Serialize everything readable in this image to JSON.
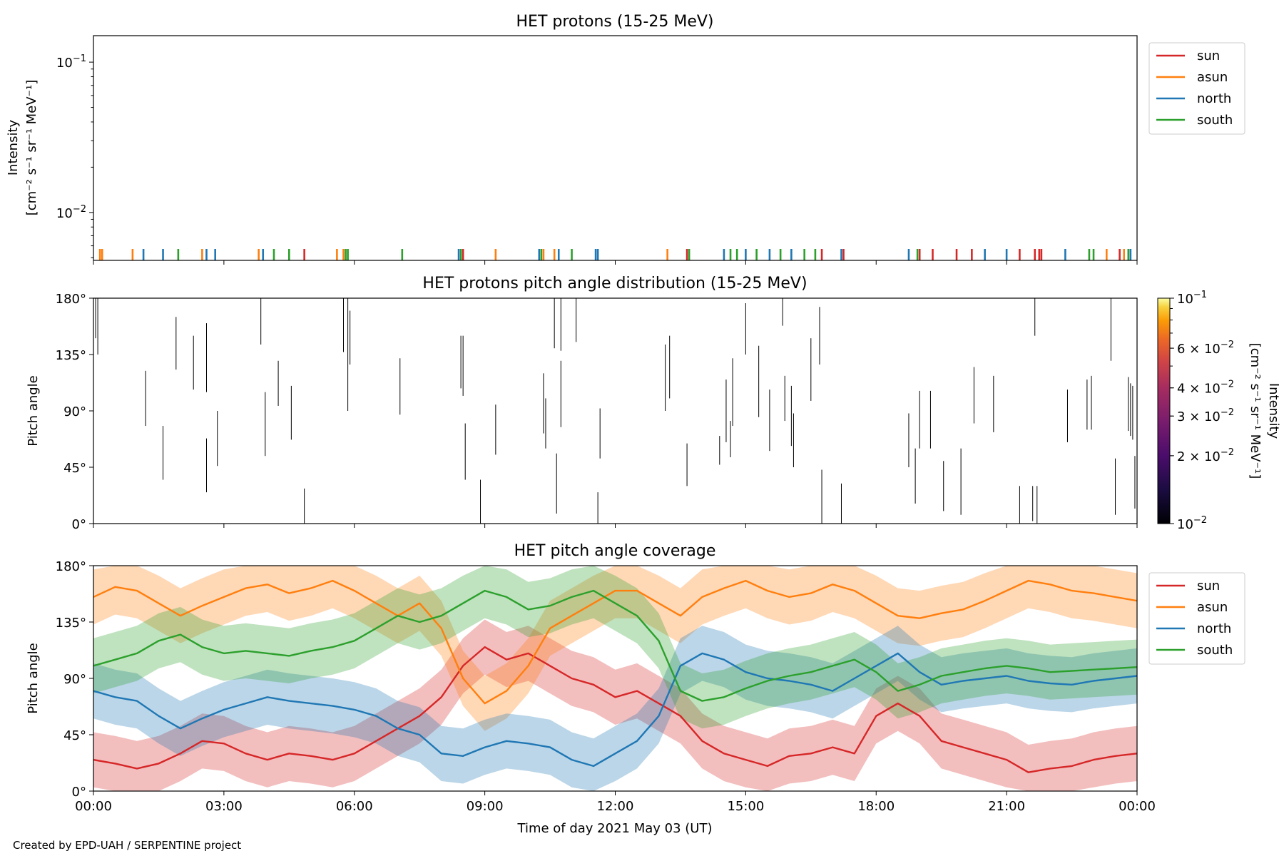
{
  "figure": {
    "credit": "Created by EPD-UAH / SERPENTINE project",
    "xlabel": "Time of day 2021 May 03 (UT)",
    "xticks": [
      "00:00",
      "03:00",
      "06:00",
      "09:00",
      "12:00",
      "15:00",
      "18:00",
      "21:00",
      "00:00"
    ]
  },
  "colors": {
    "sun": "#d62728",
    "asun": "#ff7f0e",
    "north": "#1f77b4",
    "south": "#2ca02c",
    "pad": "#000000"
  },
  "chart_data": [
    {
      "id": "intensity",
      "type": "line",
      "title": "HET protons (15-25 MeV)",
      "ylabel_line1": "Intensity",
      "ylabel_line2": "[cm⁻² s⁻¹ sr⁻¹ MeV⁻¹]",
      "yscale": "log",
      "ylim": [
        0.0048,
        0.15
      ],
      "yticks": [
        {
          "v": 0.01,
          "base": "10",
          "exp": "−2"
        },
        {
          "v": 0.1,
          "base": "10",
          "exp": "−1"
        }
      ],
      "xlim_hours": [
        0,
        24
      ],
      "legend": [
        "sun",
        "asun",
        "north",
        "south"
      ],
      "legend_position": "outside-right-top",
      "spikes": {
        "sun": [
          4.85,
          8.5,
          13.65,
          16.75,
          17.25,
          19.0,
          19.3,
          19.85,
          20.2,
          21.3,
          21.65,
          21.75,
          21.8,
          23.6
        ],
        "asun": [
          0.15,
          0.2,
          0.9,
          2.5,
          3.8,
          5.6,
          5.75,
          9.25,
          10.35,
          10.6,
          13.2,
          23.3,
          23.7
        ],
        "north": [
          1.15,
          1.6,
          2.6,
          2.8,
          3.9,
          8.4,
          10.25,
          10.7,
          11.55,
          11.6,
          14.5,
          15.0,
          15.55,
          16.05,
          17.2,
          18.75,
          20.5,
          21.0,
          22.35,
          23.85
        ],
        "south": [
          1.95,
          4.15,
          4.5,
          5.8,
          5.85,
          7.1,
          8.45,
          10.3,
          11.0,
          13.7,
          14.65,
          14.8,
          15.25,
          15.8,
          16.35,
          16.6,
          18.95,
          22.9,
          23.0,
          23.8
        ]
      }
    },
    {
      "id": "pad",
      "type": "heatmap",
      "title": "HET protons pitch angle distribution (15-25 MeV)",
      "ylabel": "Pitch angle",
      "ylim": [
        0,
        180
      ],
      "yticks": [
        "0°",
        "45°",
        "90°",
        "135°",
        "180°"
      ],
      "colorbar": {
        "label_line1": "Intensity",
        "label_line2": "[cm⁻² s⁻¹ sr⁻¹ MeV⁻¹]",
        "scale": "log",
        "range": [
          0.01,
          0.1
        ],
        "ticks": [
          {
            "v": 0.01,
            "mant": "",
            "base": "10",
            "exp": "−2"
          },
          {
            "v": 0.02,
            "mant": "2 × ",
            "base": "10",
            "exp": "−2"
          },
          {
            "v": 0.03,
            "mant": "3 × ",
            "base": "10",
            "exp": "−2"
          },
          {
            "v": 0.04,
            "mant": "4 × ",
            "base": "10",
            "exp": "−2"
          },
          {
            "v": 0.06,
            "mant": "6 × ",
            "base": "10",
            "exp": "−2"
          },
          {
            "v": 0.1,
            "mant": "",
            "base": "10",
            "exp": "−1"
          }
        ]
      },
      "segments": [
        [
          0.05,
          180,
          148
        ],
        [
          0.1,
          180,
          135
        ],
        [
          1.2,
          122,
          78
        ],
        [
          1.6,
          78,
          35
        ],
        [
          1.9,
          165,
          123
        ],
        [
          2.3,
          150,
          107
        ],
        [
          2.6,
          160,
          105
        ],
        [
          2.6,
          68,
          25
        ],
        [
          2.85,
          90,
          46
        ],
        [
          3.85,
          180,
          143
        ],
        [
          3.95,
          105,
          54
        ],
        [
          4.25,
          130,
          94
        ],
        [
          4.55,
          110,
          67
        ],
        [
          4.85,
          28,
          0
        ],
        [
          5.75,
          180,
          137
        ],
        [
          5.85,
          180,
          90
        ],
        [
          5.9,
          170,
          127
        ],
        [
          7.05,
          132,
          87
        ],
        [
          8.45,
          150,
          108
        ],
        [
          8.5,
          150,
          102
        ],
        [
          8.55,
          80,
          35
        ],
        [
          8.9,
          35,
          0
        ],
        [
          9.25,
          95,
          55
        ],
        [
          10.35,
          120,
          72
        ],
        [
          10.4,
          100,
          60
        ],
        [
          10.6,
          180,
          140
        ],
        [
          10.65,
          56,
          8
        ],
        [
          10.75,
          180,
          138
        ],
        [
          10.75,
          130,
          77
        ],
        [
          11.1,
          180,
          145
        ],
        [
          11.6,
          25,
          0
        ],
        [
          11.65,
          92,
          52
        ],
        [
          13.15,
          143,
          90
        ],
        [
          13.25,
          150,
          100
        ],
        [
          13.65,
          64,
          30
        ],
        [
          14.4,
          70,
          47
        ],
        [
          14.55,
          115,
          65
        ],
        [
          14.65,
          82,
          53
        ],
        [
          14.7,
          132,
          78
        ],
        [
          15.0,
          176,
          135
        ],
        [
          15.3,
          142,
          85
        ],
        [
          15.55,
          107,
          58
        ],
        [
          15.85,
          180,
          158
        ],
        [
          15.9,
          118,
          82
        ],
        [
          16.05,
          110,
          62
        ],
        [
          16.1,
          88,
          45
        ],
        [
          16.5,
          148,
          98
        ],
        [
          16.7,
          173,
          127
        ],
        [
          16.75,
          43,
          0
        ],
        [
          17.2,
          32,
          0
        ],
        [
          18.75,
          88,
          45
        ],
        [
          18.9,
          60,
          16
        ],
        [
          19.0,
          106,
          60
        ],
        [
          19.25,
          106,
          60
        ],
        [
          19.55,
          50,
          10
        ],
        [
          19.95,
          60,
          7
        ],
        [
          20.25,
          125,
          80
        ],
        [
          20.7,
          118,
          73
        ],
        [
          21.3,
          30,
          0
        ],
        [
          21.6,
          30,
          2
        ],
        [
          21.65,
          180,
          150
        ],
        [
          21.7,
          30,
          0
        ],
        [
          22.4,
          107,
          65
        ],
        [
          22.85,
          115,
          75
        ],
        [
          22.95,
          118,
          75
        ],
        [
          23.4,
          180,
          130
        ],
        [
          23.5,
          52,
          7
        ],
        [
          23.8,
          117,
          74
        ],
        [
          23.85,
          112,
          70
        ],
        [
          23.9,
          110,
          67
        ],
        [
          23.95,
          54,
          12
        ]
      ]
    },
    {
      "id": "coverage",
      "type": "area",
      "title": "HET pitch angle coverage",
      "ylabel": "Pitch angle",
      "ylim": [
        0,
        180
      ],
      "yticks": [
        "0°",
        "45°",
        "90°",
        "135°",
        "180°"
      ],
      "band_halfwidth_deg": 22,
      "legend": [
        "sun",
        "asun",
        "north",
        "south"
      ],
      "legend_position": "outside-right-top",
      "x_hours": [
        0,
        0.5,
        1,
        1.5,
        2,
        2.5,
        3,
        3.5,
        4,
        4.5,
        5,
        5.5,
        6,
        6.5,
        7,
        7.5,
        8,
        8.5,
        9,
        9.5,
        10,
        10.5,
        11,
        11.5,
        12,
        12.5,
        13,
        13.5,
        14,
        14.5,
        15,
        15.5,
        16,
        16.5,
        17,
        17.5,
        18,
        18.5,
        19,
        19.5,
        20,
        20.5,
        21,
        21.5,
        22,
        22.5,
        23,
        23.5,
        24
      ],
      "series": [
        {
          "name": "sun",
          "values": [
            25,
            22,
            18,
            22,
            30,
            40,
            38,
            30,
            25,
            30,
            28,
            25,
            30,
            40,
            50,
            60,
            75,
            100,
            115,
            105,
            110,
            100,
            90,
            85,
            75,
            80,
            70,
            60,
            40,
            30,
            25,
            20,
            28,
            30,
            35,
            30,
            60,
            70,
            60,
            40,
            35,
            30,
            25,
            15,
            18,
            20,
            25,
            28,
            30
          ]
        },
        {
          "name": "asun",
          "values": [
            155,
            163,
            160,
            150,
            140,
            148,
            155,
            162,
            165,
            158,
            162,
            168,
            160,
            150,
            140,
            150,
            130,
            90,
            70,
            80,
            100,
            130,
            140,
            150,
            160,
            160,
            150,
            140,
            155,
            162,
            168,
            160,
            155,
            158,
            165,
            160,
            150,
            140,
            138,
            142,
            145,
            152,
            160,
            168,
            165,
            160,
            158,
            155,
            152
          ]
        },
        {
          "name": "north",
          "values": [
            80,
            75,
            72,
            60,
            50,
            58,
            65,
            70,
            75,
            72,
            70,
            68,
            65,
            60,
            50,
            45,
            30,
            28,
            35,
            40,
            38,
            35,
            25,
            20,
            30,
            40,
            60,
            100,
            110,
            105,
            95,
            90,
            88,
            85,
            80,
            90,
            100,
            110,
            95,
            85,
            88,
            90,
            92,
            88,
            86,
            85,
            88,
            90,
            92
          ]
        },
        {
          "name": "south",
          "values": [
            100,
            105,
            110,
            120,
            125,
            115,
            110,
            112,
            110,
            108,
            112,
            115,
            120,
            130,
            140,
            135,
            140,
            150,
            160,
            155,
            145,
            148,
            155,
            160,
            150,
            140,
            120,
            80,
            72,
            75,
            82,
            88,
            92,
            95,
            100,
            105,
            95,
            80,
            85,
            92,
            95,
            98,
            100,
            98,
            95,
            96,
            97,
            98,
            99
          ]
        }
      ]
    }
  ]
}
